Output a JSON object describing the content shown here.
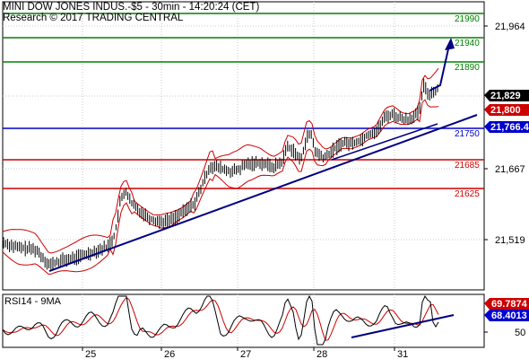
{
  "header": {
    "line1": "MINI DOW JONES INDUS.-$5 - 30min - 14:20:24 (CET)",
    "line2": "Research © 2017 TRADING CENTRAL"
  },
  "chart_data": {
    "type": "candlestick",
    "price_axis_ticks": [
      "21,964",
      "21,667",
      "21,519"
    ],
    "x_tick_labels": [
      "25",
      "26",
      "27",
      "28",
      "31"
    ],
    "horizontal_levels": [
      {
        "value": 21990,
        "label": "21990",
        "color": "#008000"
      },
      {
        "value": 21940,
        "label": "21940",
        "color": "#008000"
      },
      {
        "value": 21890,
        "label": "21890",
        "color": "#008000"
      },
      {
        "value": 21750,
        "label": "21750",
        "color": "#0000cc"
      },
      {
        "value": 21685,
        "label": "21685",
        "color": "#cc0000"
      },
      {
        "value": 21625,
        "label": "21625",
        "color": "#cc0000"
      }
    ],
    "price_tags": [
      {
        "label": "21,829",
        "bg": "#000000",
        "fg": "#ffffff"
      },
      {
        "label": "21,800",
        "bg": "#cc0000",
        "fg": "#ffffff"
      },
      {
        "label": "21,766.4",
        "bg": "#0000cc",
        "fg": "#ffffff"
      }
    ],
    "rsi": {
      "title": "RSI14 - 9MA",
      "axis_ticks": [
        "50"
      ],
      "tags": [
        {
          "label": "69.7874",
          "bg": "#cc0000",
          "fg": "#ffffff"
        },
        {
          "label": "68.4013",
          "bg": "#0000cc",
          "fg": "#ffffff"
        }
      ]
    },
    "colors": {
      "price": "#000000",
      "bands": "#cc0000",
      "trend": "#000080"
    }
  }
}
